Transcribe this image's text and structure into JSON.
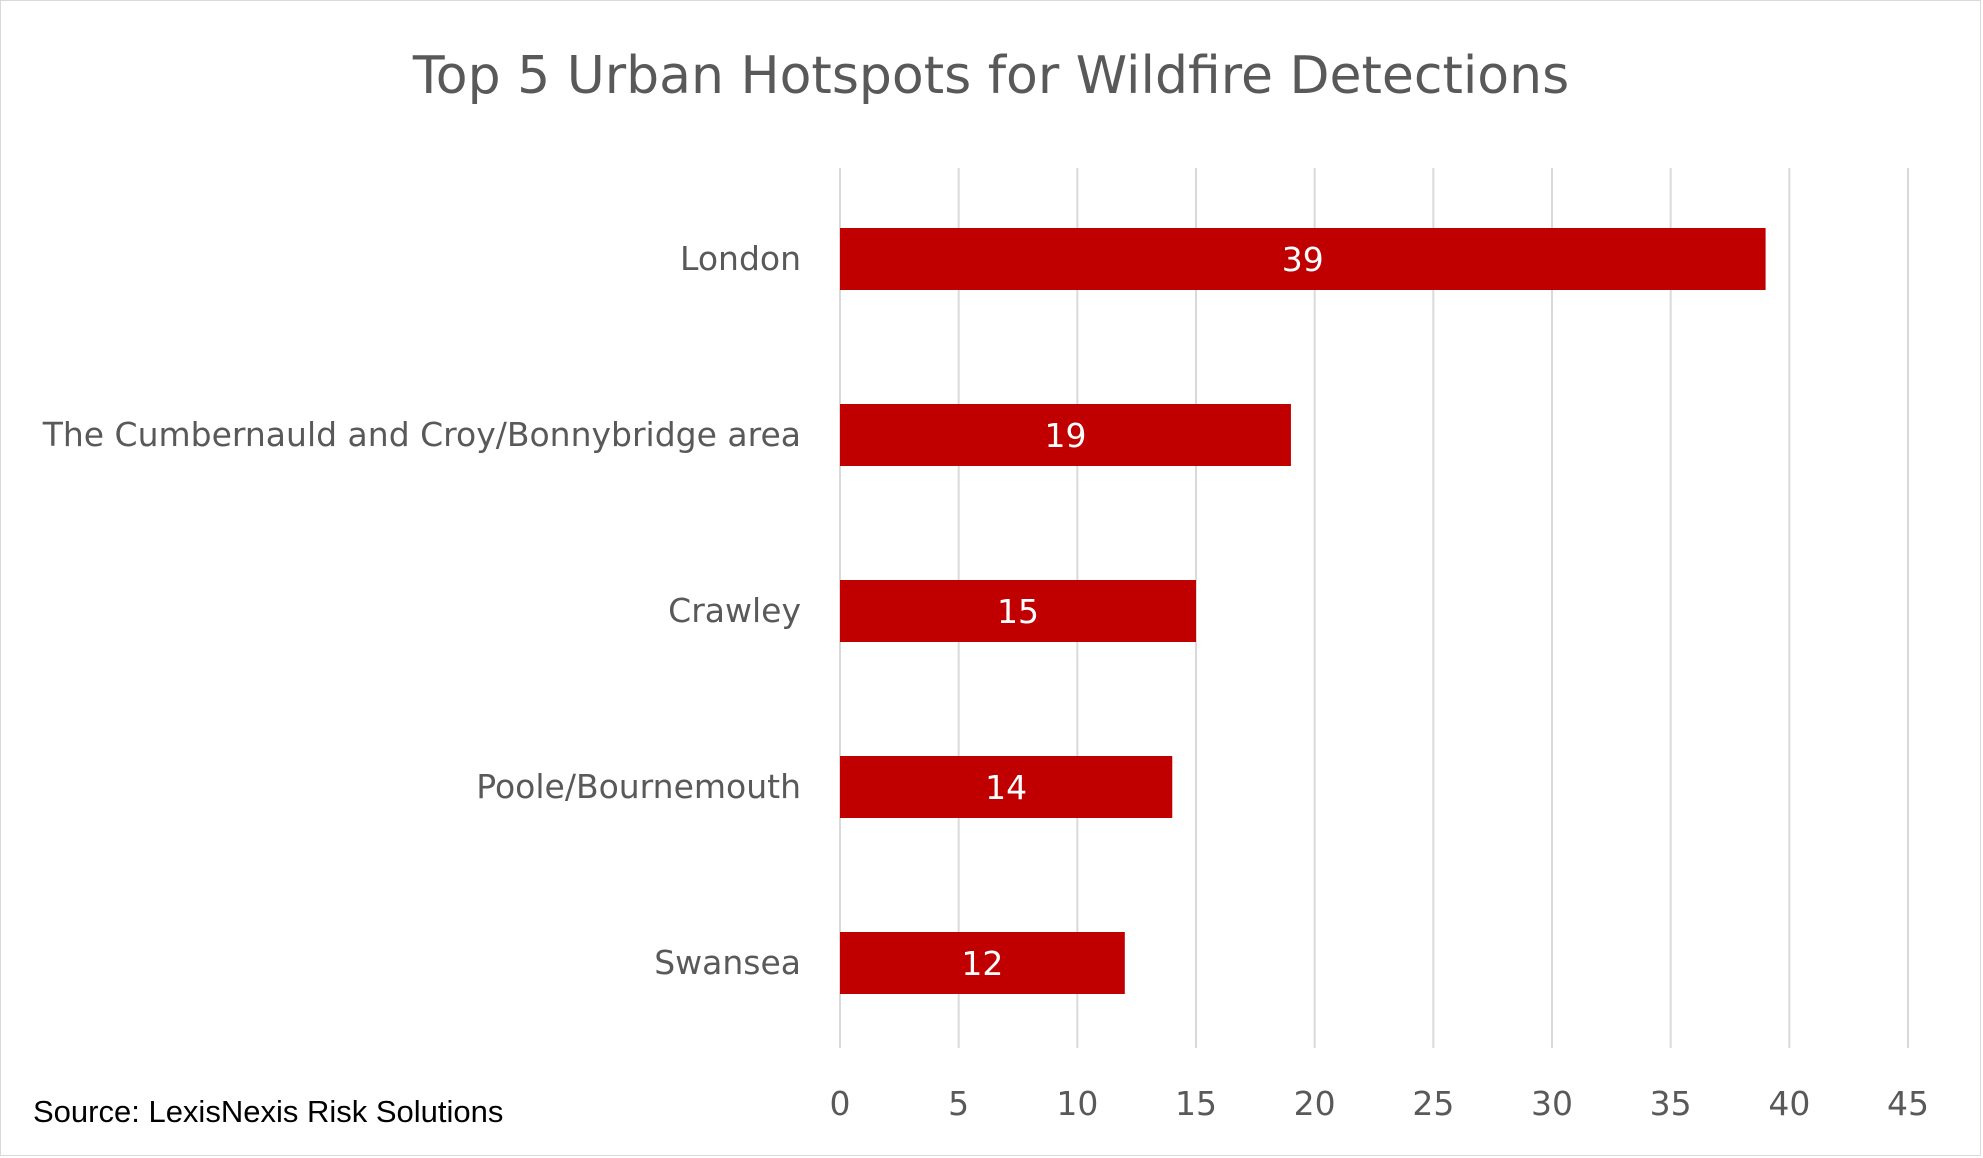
{
  "chart_data": {
    "type": "bar",
    "orientation": "horizontal",
    "title": "Top 5 Urban Hotspots for Wildfire Detections",
    "categories": [
      "London",
      "The Cumbernauld and Croy/Bonnybridge area",
      "Crawley",
      "Poole/Bournemouth",
      "Swansea"
    ],
    "values": [
      39,
      19,
      15,
      14,
      12
    ],
    "xlim": [
      0,
      45
    ],
    "x_ticks": [
      0,
      5,
      10,
      15,
      20,
      25,
      30,
      35,
      40,
      45
    ],
    "grid": "vertical",
    "legend": "none",
    "bar_color": "#C00000",
    "data_labels": "inside-center",
    "source": "Source: LexisNexis Risk Solutions"
  }
}
